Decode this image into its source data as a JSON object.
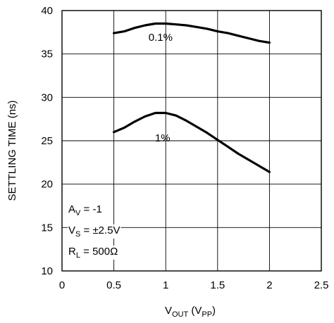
{
  "chart_data": {
    "type": "line",
    "xlabel": "V_OUT (V_PP)",
    "xlabel_parts": {
      "main": "V",
      "sub": "OUT",
      "paren_open": " (V",
      "paren_sub": "PP",
      "paren_close": ")"
    },
    "ylabel": "SETTLING TIME (ns)",
    "xlim": [
      0,
      2.5
    ],
    "ylim": [
      10,
      40
    ],
    "x_ticks": [
      0,
      0.5,
      1,
      1.5,
      2,
      2.5
    ],
    "x_tick_labels": [
      "0",
      "0.5",
      "1",
      "1.5",
      "2",
      "2.5"
    ],
    "y_ticks": [
      10,
      15,
      20,
      25,
      30,
      35,
      40
    ],
    "y_tick_labels": [
      "10",
      "15",
      "20",
      "25",
      "30",
      "35",
      "40"
    ],
    "grid": true,
    "series": [
      {
        "name": "0.1%",
        "x": [
          0.5,
          0.6,
          0.7,
          0.8,
          0.9,
          1.0,
          1.1,
          1.2,
          1.3,
          1.4,
          1.5,
          1.6,
          1.7,
          1.8,
          1.9,
          2.0
        ],
        "y": [
          37.4,
          37.6,
          38.0,
          38.3,
          38.5,
          38.5,
          38.4,
          38.3,
          38.1,
          37.9,
          37.6,
          37.4,
          37.1,
          36.8,
          36.5,
          36.3
        ]
      },
      {
        "name": "1%",
        "x": [
          0.5,
          0.6,
          0.7,
          0.8,
          0.9,
          1.0,
          1.1,
          1.2,
          1.3,
          1.4,
          1.5,
          1.6,
          1.7,
          1.8,
          1.9,
          2.0
        ],
        "y": [
          26.0,
          26.5,
          27.2,
          27.8,
          28.2,
          28.2,
          27.9,
          27.3,
          26.6,
          25.9,
          25.1,
          24.3,
          23.5,
          22.8,
          22.1,
          21.4
        ]
      }
    ],
    "annotations": [
      {
        "text": "0.1%",
        "x": 0.95,
        "y": 36.5
      },
      {
        "text": "1%",
        "x": 0.97,
        "y": 24.9
      }
    ],
    "conditions": [
      {
        "main": "A",
        "sub": "V",
        "rest": " = -1"
      },
      {
        "main": "V",
        "sub": "S",
        "rest": " = ±2.5V"
      },
      {
        "main": "R",
        "sub": "L",
        "rest": " = 500Ω"
      }
    ]
  }
}
